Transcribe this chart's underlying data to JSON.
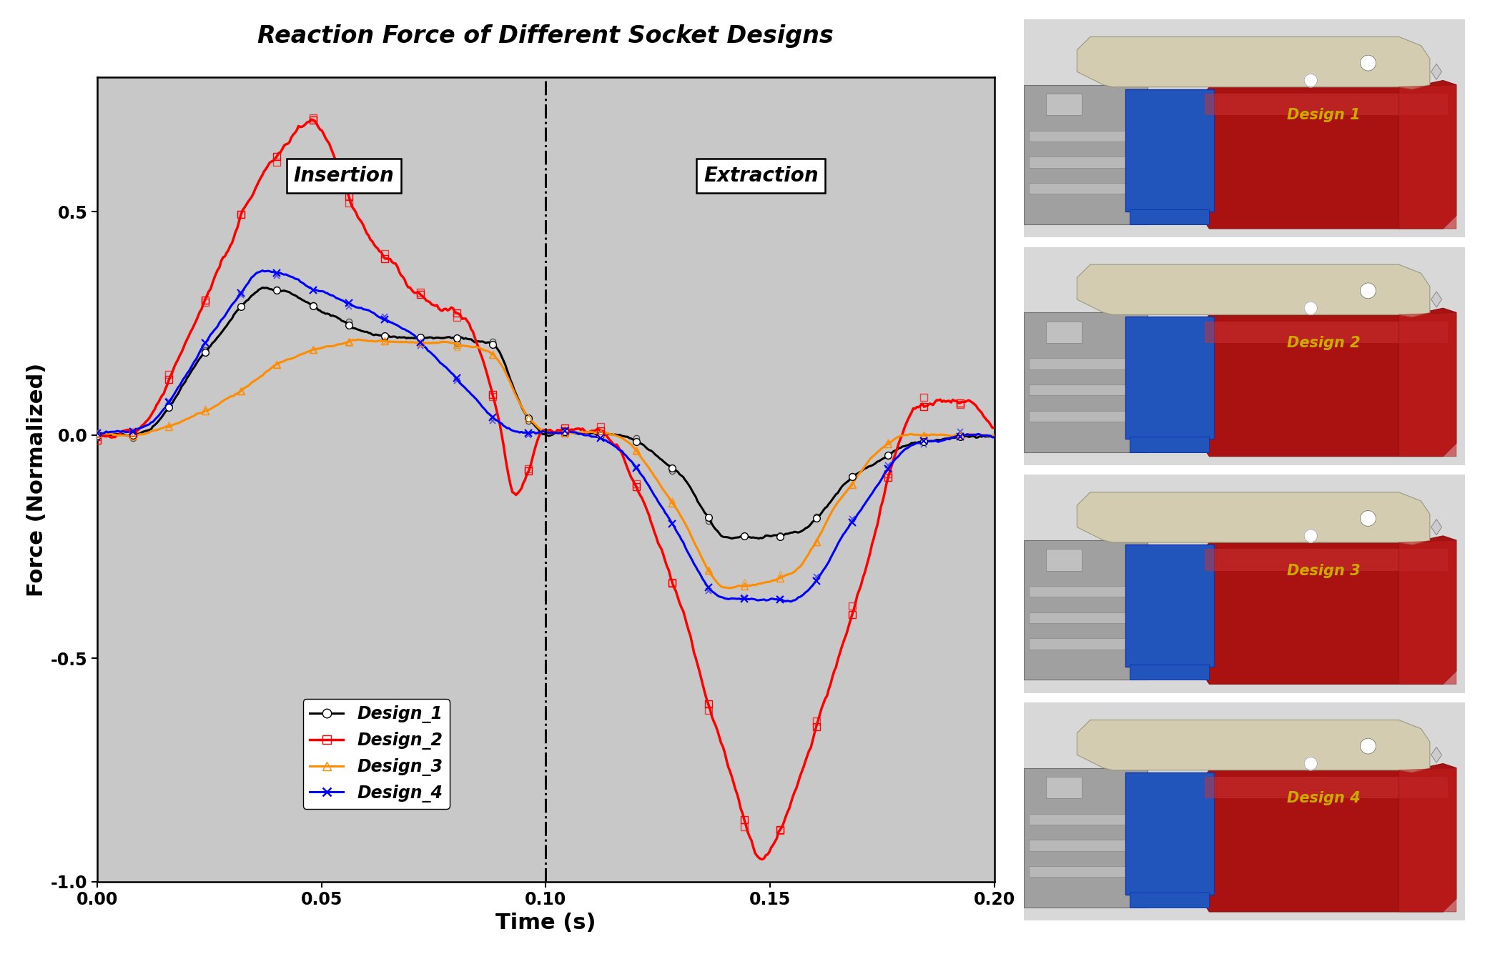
{
  "title": "Reaction Force of Different Socket Designs",
  "xlabel": "Time (s)",
  "ylabel": "Force (Normalized)",
  "xlim": [
    0.0,
    0.2
  ],
  "ylim": [
    -1.0,
    0.8
  ],
  "yticks": [
    -1.0,
    -0.5,
    0.0,
    0.5
  ],
  "xticks": [
    0.0,
    0.05,
    0.1,
    0.15,
    0.2
  ],
  "vline_x": 0.1,
  "insertion_label": "Insertion",
  "extraction_label": "Extraction",
  "background_color": "#c8c8c8",
  "figure_background": "#ffffff",
  "legend_labels": [
    "Design_1",
    "Design_2",
    "Design_3",
    "Design_4"
  ],
  "colors": [
    "#000000",
    "#ff0000",
    "#ff8c00",
    "#0000ff"
  ],
  "title_fontsize": 24,
  "axis_fontsize": 20,
  "tick_fontsize": 17,
  "legend_fontsize": 17,
  "design_label_color": "#ccaa00"
}
